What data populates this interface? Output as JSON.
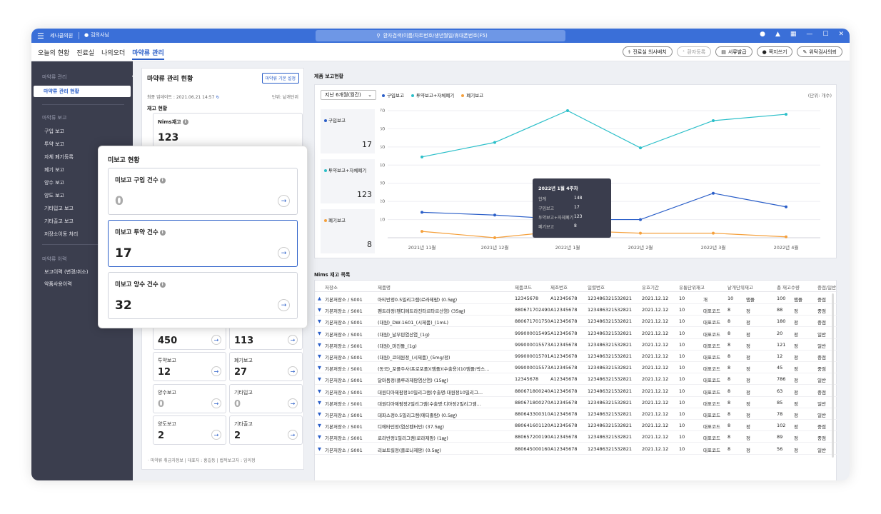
{
  "titlebar": {
    "hospital": "세나클의원",
    "user": "김의사님",
    "search_placeholder": "환자검색(이름/차트번호/생년월일/휴대폰번호(F5)"
  },
  "menu": {
    "tabs": [
      "오늘의 현황",
      "진료실",
      "나의오더",
      "마약류 관리"
    ],
    "buttons": [
      "진료실 의사배치",
      "환자등록",
      "서류발급",
      "쪽지쓰기",
      "위탁검사의뢰"
    ]
  },
  "sidebar": {
    "section1": "마약류 관리",
    "active_item": "마약류 관리 현황",
    "section2": "마약류 보고",
    "report_items": [
      "구입 보고",
      "투약 보고",
      "자체 폐기등록",
      "폐기 보고",
      "양수 보고",
      "양도 보고",
      "기타입고 보고",
      "기타출고 보고",
      "저장소이동 처리"
    ],
    "section3": "마약류 이력",
    "history_items": [
      "보고이력 (변경/취소)",
      "약품사용이력"
    ]
  },
  "left_panel": {
    "title": "마약류 관리 현황",
    "setting_button": "마약류 기본 설정",
    "last_update": "최종 업데이트 : 2021.06.21 14:57",
    "unit": "단위: 낱개단위",
    "stock_title": "재고 현황",
    "nims_label": "Nims재고",
    "nims_value": "123",
    "cards": [
      {
        "label": "",
        "value": "450"
      },
      {
        "label": "",
        "value": "113"
      },
      {
        "label": "투약보고",
        "value": "12"
      },
      {
        "label": "폐기보고",
        "value": "27"
      },
      {
        "label": "양수보고",
        "value": "0"
      },
      {
        "label": "기타입고",
        "value": "0"
      },
      {
        "label": "양도보고",
        "value": "2"
      },
      {
        "label": "기타출고",
        "value": "2"
      }
    ],
    "footer": "· 마약류 취급자정보 | 대표자 : 홍길동 | 법적보고자 : 임의정"
  },
  "popup": {
    "title": "미보고 현황",
    "cards": [
      {
        "label": "미보고 구입 건수",
        "value": "0"
      },
      {
        "label": "미보고 투약 건수",
        "value": "17"
      },
      {
        "label": "미보고 양수 건수",
        "value": "32"
      }
    ]
  },
  "chart_panel": {
    "title": "제품 보고현황",
    "period": "지난 6개월(월간)",
    "unit": "(단위: 개수)",
    "mini": [
      {
        "label": "구입보고",
        "value": "17",
        "color": "#2a5ec8"
      },
      {
        "label": "투약보고+자체폐기",
        "value": "123",
        "color": "#2bbfc9"
      },
      {
        "label": "폐기보고",
        "value": "8",
        "color": "#f5a03c"
      }
    ],
    "tooltip": {
      "title": "2022년 1월 4주차",
      "rows": [
        {
          "k": "합계",
          "v": "148"
        },
        {
          "k": "구입보고",
          "v": "17"
        },
        {
          "k": "투약보고+자체폐기",
          "v": "123"
        },
        {
          "k": "폐기보고",
          "v": "8"
        }
      ]
    }
  },
  "chart_data": {
    "type": "line",
    "categories": [
      "2021년 11월",
      "2021년 12월",
      "2022년 1월",
      "2022년 2월",
      "2022년 3월",
      "2022년 4월"
    ],
    "ylim": [
      0,
      70
    ],
    "yticks": [
      10,
      20,
      30,
      40,
      50,
      60,
      70
    ],
    "series": [
      {
        "name": "구입보고",
        "color": "#2a5ec8",
        "values": [
          14,
          12.5,
          10,
          10,
          24.5,
          17
        ]
      },
      {
        "name": "투약보고+자체폐기",
        "color": "#2bbfc9",
        "values": [
          44.5,
          52.5,
          70,
          49.5,
          64.5,
          68
        ]
      },
      {
        "name": "폐기보고",
        "color": "#f5a03c",
        "values": [
          3.5,
          0,
          4,
          2.5,
          2.5,
          0.5
        ]
      }
    ]
  },
  "table": {
    "title": "Nims 재고 목록",
    "headers": [
      "저장소",
      "제품명",
      "제품코드",
      "제조번호",
      "일렬번호",
      "유효기간",
      "유통단위재고",
      "",
      "낱개단위재고",
      "",
      "총 재고수량",
      "",
      "중점/일반"
    ],
    "rows": [
      [
        "기본저장소 / S001",
        "아티반정0.5밀리그램(로라제팜) (0.5㎎)",
        "12345678",
        "A12345678",
        "123486321532821",
        "2021.12.12",
        "10",
        "개",
        "10",
        "앰플",
        "100",
        "앰플",
        "중점"
      ],
      [
        "기본저장소 / S001",
        "펜트라정(펜디메트라진타르타르산염) (35㎎)",
        "880671702490",
        "A12345678",
        "123486321532821",
        "2021.12.12",
        "10",
        "대표코드",
        "8",
        "정",
        "88",
        "정",
        "중점"
      ],
      [
        "기본저장소 / S001",
        "(대원)_DW-1601_(시제품)_(1mL)",
        "880671701750",
        "A12345678",
        "123486321532821",
        "2021.12.12",
        "10",
        "대표코드",
        "8",
        "정",
        "180",
        "정",
        "중점"
      ],
      [
        "기본저장소 / S001",
        "(대원)_날부핀염산염_(1g)",
        "999000015495",
        "A12345678",
        "123486321532821",
        "2021.12.12",
        "10",
        "대표코드",
        "8",
        "정",
        "20",
        "정",
        "일반"
      ],
      [
        "기본저장소 / S001",
        "(대원)_마진돌_(1g)",
        "999000015573",
        "A12345678",
        "123486321532821",
        "2021.12.12",
        "10",
        "대표코드",
        "8",
        "정",
        "121",
        "정",
        "일반"
      ],
      [
        "기본저장소 / S001",
        "(대원)_코데원정_(시제품)_(5mg/정)",
        "999000015701",
        "A12345678",
        "123486321532821",
        "2021.12.12",
        "10",
        "대표코드",
        "8",
        "정",
        "12",
        "정",
        "중점"
      ],
      [
        "기본저장소 / S001",
        "(동국)_포플주사(프로포폴)(앰플)(수출용)(10앰플/박스...",
        "999000015573",
        "A12345678",
        "123486321532821",
        "2021.12.12",
        "10",
        "대표코드",
        "8",
        "정",
        "45",
        "정",
        "중점"
      ],
      [
        "기본저장소 / S001",
        "달마돔정(플루라제팜염산염) (15㎎)",
        "12345678",
        "A12345678",
        "123486321532821",
        "2021.12.12",
        "10",
        "대표코드",
        "8",
        "정",
        "786",
        "정",
        "일반"
      ],
      [
        "기본저장소 / S001",
        "대원디아제팜정10밀리그램(수출명:대원정10밀리그...",
        "880671800240",
        "A12345678",
        "123486321532821",
        "2021.12.12",
        "10",
        "대표코드",
        "8",
        "정",
        "63",
        "정",
        "중점"
      ],
      [
        "기본저장소 / S001",
        "대원디아제팜정2밀리그램(수출명:디아정2밀리그램...",
        "880671800270",
        "A12345678",
        "123486321532821",
        "2021.12.12",
        "10",
        "대표코드",
        "8",
        "정",
        "85",
        "정",
        "일반"
      ],
      [
        "기본저장소 / S001",
        "데파스정0.5밀리그램(에티졸람) (0.5㎎)",
        "880643300310",
        "A12345678",
        "123486321532821",
        "2021.12.12",
        "10",
        "대표코드",
        "8",
        "정",
        "78",
        "정",
        "일반"
      ],
      [
        "기본저장소 / S001",
        "디에타민정(염산펜터민) (37.5㎎)",
        "880641601120",
        "A12345678",
        "123486321532821",
        "2021.12.12",
        "10",
        "대표코드",
        "8",
        "정",
        "102",
        "정",
        "중점"
      ],
      [
        "기본저장소 / S001",
        "로라반정1밀리그램(로라제팜) (1㎎)",
        "880657200190",
        "A12345678",
        "123486321532821",
        "2021.12.12",
        "10",
        "대표코드",
        "8",
        "정",
        "89",
        "정",
        "중점"
      ],
      [
        "기본저장소 / S001",
        "리보트릴정(클로나제팜) (0.5㎎)",
        "880645000160",
        "A12345678",
        "123486321532821",
        "2021.12.12",
        "10",
        "대표코드",
        "8",
        "정",
        "56",
        "정",
        "일반"
      ]
    ]
  }
}
